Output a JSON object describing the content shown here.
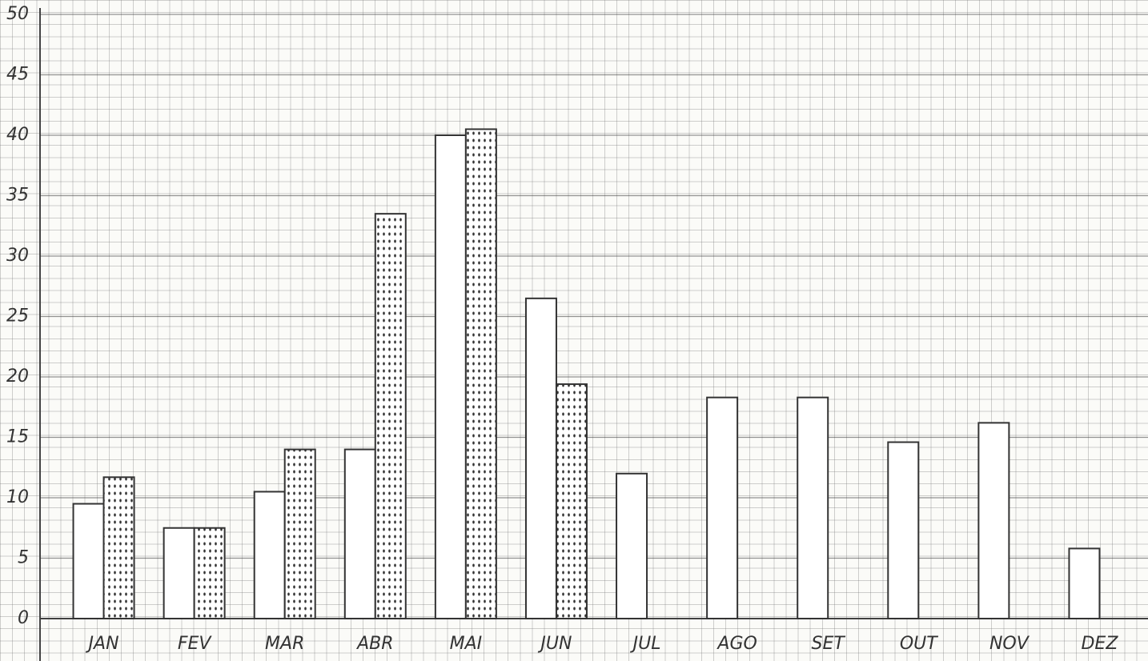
{
  "chart_data": {
    "type": "bar",
    "categories": [
      "JAN",
      "FEV",
      "MAR",
      "ABR",
      "MAI",
      "JUN",
      "JUL",
      "AGO",
      "SET",
      "OUT",
      "NOV",
      "DEZ"
    ],
    "series": [
      {
        "color": "#ffffff",
        "fill": "solid",
        "values": [
          9.5,
          7.5,
          10.5,
          14,
          40,
          26.5,
          12,
          18.3,
          18.3,
          14.6,
          16.2,
          5.8
        ]
      },
      {
        "color": "#ffffff",
        "fill": "dots",
        "values": [
          11.7,
          7.5,
          14,
          33.5,
          40.5,
          19.4,
          null,
          null,
          null,
          null,
          null,
          null
        ]
      }
    ],
    "ylim": [
      0,
      50
    ],
    "yticks": [
      0,
      5,
      10,
      15,
      20,
      25,
      30,
      35,
      40,
      45,
      50
    ],
    "grid": true
  }
}
